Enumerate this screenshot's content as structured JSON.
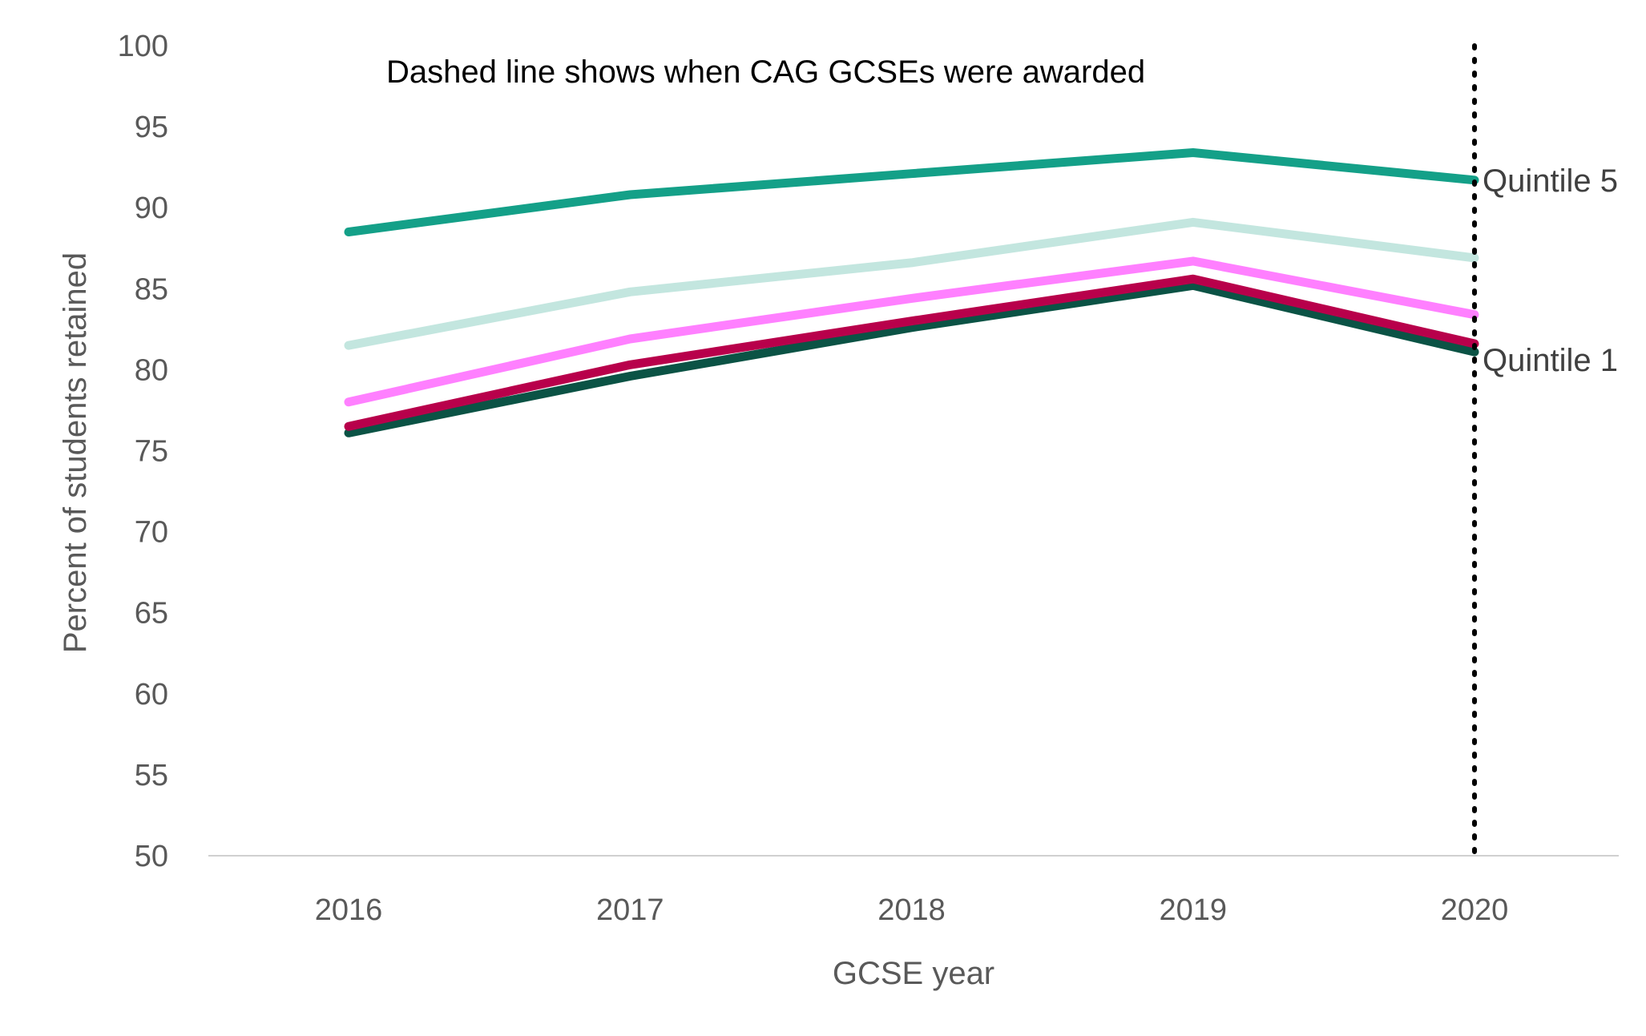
{
  "chart_data": {
    "type": "line",
    "title": "",
    "xlabel": "GCSE year",
    "ylabel": "Percent of students retained",
    "x": [
      "2016",
      "2017",
      "2018",
      "2019",
      "2020"
    ],
    "ylim": [
      50,
      100
    ],
    "yticks": [
      50,
      55,
      60,
      65,
      70,
      75,
      80,
      85,
      90,
      95,
      100
    ],
    "grid": false,
    "legend": "none",
    "series": [
      {
        "key": "q1",
        "color": "#0b5345",
        "values": [
          76.1,
          79.6,
          82.6,
          85.2,
          81.1
        ]
      },
      {
        "key": "q2",
        "color": "#b8004b",
        "values": [
          76.5,
          80.3,
          83.0,
          85.6,
          81.6
        ]
      },
      {
        "key": "q3",
        "color": "#ff80ff",
        "values": [
          78.0,
          81.9,
          84.4,
          86.7,
          83.4
        ]
      },
      {
        "key": "q4",
        "color": "#c3e6df",
        "values": [
          81.5,
          84.8,
          86.6,
          89.1,
          86.9
        ]
      },
      {
        "key": "q5",
        "color": "#14a088",
        "values": [
          88.5,
          90.8,
          92.1,
          93.4,
          91.7
        ]
      }
    ],
    "series_labels": [
      {
        "text": "Quintile 5",
        "series": "q5"
      },
      {
        "text": "Quintile 1",
        "series": "q1"
      }
    ],
    "vline": {
      "x": "2020",
      "style": "dotted",
      "color": "#000000"
    },
    "annotation": "Dashed line shows when CAG GCSEs were awarded"
  }
}
